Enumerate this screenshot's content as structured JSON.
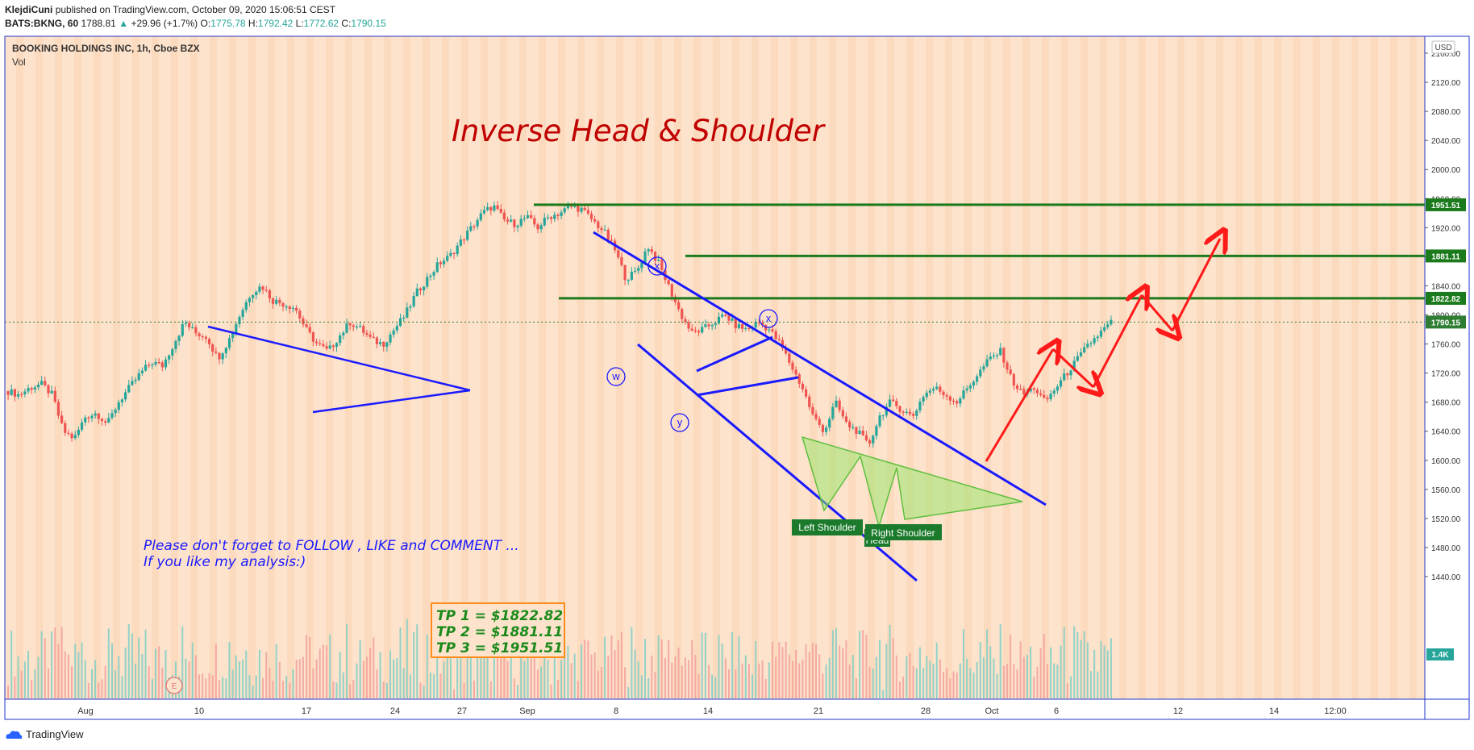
{
  "header": {
    "author": "KlejdiCuni",
    "published": "published on TradingView.com, October 09, 2020 15:06:51 CEST",
    "symbol": "BATS:BKNG, 60",
    "last": "1788.81",
    "change": "+29.96 (+1.7%)",
    "o_label": "O:",
    "o": "1775.78",
    "h_label": "H:",
    "h": "1792.42",
    "l_label": "L:",
    "l": "1772.62",
    "c_label": "C:",
    "c": "1790.15"
  },
  "legend": {
    "instrument": "BOOKING HOLDINGS INC, 1h, Cboe BZX",
    "vol": "Vol"
  },
  "currency": "USD",
  "title": "Inverse Head & Shoulder",
  "note_lines": [
    "Please don't forget  to FOLLOW , LIKE and COMMENT ...",
    "If you like my analysis:)"
  ],
  "tp_lines": [
    "TP 1 = $1822.82",
    "TP 2 = $1881.11",
    "TP 3 = $1951.51"
  ],
  "pattern_labels": {
    "left": "Left Shoulder",
    "head": "Head",
    "right": "Right Shoulder"
  },
  "wave_labels": [
    "x",
    "w",
    "y",
    "x"
  ],
  "earnings_marker": "E",
  "footer": "TradingView",
  "colors": {
    "bg": "#fde3cc",
    "up": "#26a69a",
    "down": "#ef5350",
    "target_line": "#2e7d32",
    "channel": "#1a1aff",
    "arrow": "#ff1a1a",
    "title": "#c00000"
  },
  "chart_data": {
    "type": "candlestick",
    "timeframe": "1h",
    "ylim": [
      1410,
      2180
    ],
    "y_ticks": [
      2160,
      2120,
      2080,
      2040,
      2000,
      1960,
      1920,
      1880,
      1840,
      1800,
      1760,
      1720,
      1680,
      1640,
      1600,
      1560,
      1520,
      1480,
      1440
    ],
    "x_ticks": [
      "Aug",
      "10",
      "17",
      "24",
      "27",
      "Sep",
      "8",
      "14",
      "21",
      "28",
      "Oct",
      "6",
      "12",
      "14",
      "12:00"
    ],
    "price_levels": [
      {
        "label": "1951.51",
        "value": 1951.51,
        "color": "#1b7a1b"
      },
      {
        "label": "1881.11",
        "value": 1881.11,
        "color": "#1b7a1b"
      },
      {
        "label": "1822.82",
        "value": 1822.82,
        "color": "#1b7a1b"
      },
      {
        "label": "1790.15",
        "value": 1790.15,
        "color": "#2e7d32"
      }
    ],
    "volume_badge": "1.4K",
    "close_path": [
      1695,
      1690,
      1700,
      1705,
      1690,
      1640,
      1630,
      1660,
      1665,
      1650,
      1680,
      1700,
      1720,
      1735,
      1730,
      1760,
      1790,
      1775,
      1770,
      1740,
      1765,
      1800,
      1830,
      1840,
      1820,
      1815,
      1810,
      1780,
      1760,
      1750,
      1770,
      1790,
      1780,
      1765,
      1760,
      1780,
      1800,
      1830,
      1850,
      1870,
      1880,
      1900,
      1920,
      1940,
      1950,
      1930,
      1925,
      1935,
      1920,
      1935,
      1940,
      1950,
      1945,
      1930,
      1915,
      1890,
      1850,
      1860,
      1895,
      1870,
      1835,
      1800,
      1775,
      1780,
      1790,
      1800,
      1785,
      1780,
      1790,
      1780,
      1760,
      1730,
      1700,
      1660,
      1640,
      1680,
      1650,
      1640,
      1620,
      1660,
      1680,
      1670,
      1660,
      1690,
      1700,
      1690,
      1680,
      1700,
      1720,
      1740,
      1750,
      1710,
      1690,
      1700,
      1680,
      1700,
      1720,
      1740,
      1760,
      1775,
      1790
    ]
  }
}
